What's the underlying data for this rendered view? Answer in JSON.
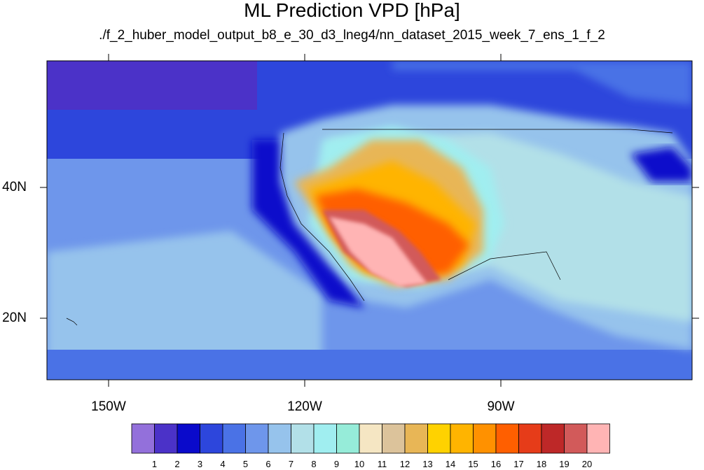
{
  "map": {
    "title": "ML Prediction VPD [hPa]",
    "subtitle": "./f_2_huber_model_output_b8_e_30_d3_lneg4/nn_dataset_2015_week_7_ens_1_f_2",
    "lon_labels": [
      "150W",
      "120W",
      "90W"
    ],
    "lat_labels": [
      "40N",
      "20N"
    ],
    "colorbar": {
      "levels": [
        "1",
        "2",
        "3",
        "4",
        "5",
        "6",
        "7",
        "8",
        "9",
        "10",
        "11",
        "12",
        "13",
        "14",
        "15",
        "16",
        "17",
        "18",
        "19",
        "20"
      ],
      "colors": [
        "#9370db",
        "#4b32c8",
        "#0a0acb",
        "#2d46dc",
        "#4a72e6",
        "#6e96eb",
        "#96c3ec",
        "#b2e0e8",
        "#a0eef0",
        "#96ecd9",
        "#f5e6c3",
        "#dcc39b",
        "#e8b656",
        "#ffd200",
        "#ffb400",
        "#ff9100",
        "#ff5f00",
        "#e63c19",
        "#be2828",
        "#d25a5a",
        "#ffb4b4"
      ]
    }
  }
}
